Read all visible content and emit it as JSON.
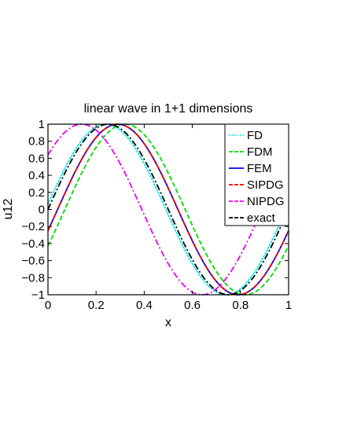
{
  "chart_data": {
    "type": "line",
    "title": "linear wave in 1+1 dimensions",
    "xlabel": "x",
    "ylabel": "u12",
    "xlim": [
      0,
      1
    ],
    "ylim": [
      -1,
      1
    ],
    "x_ticks": [
      "0",
      "0.2",
      "0.4",
      "0.6",
      "0.8",
      "1"
    ],
    "y_ticks": [
      "1",
      "0.8",
      "0.6",
      "0.4",
      "0.2",
      "0",
      "−0.2",
      "−0.4",
      "−0.6",
      "−0.8",
      "−1"
    ],
    "grid": false,
    "legend_position": "top-right",
    "series": [
      {
        "name": "FD",
        "color": "#00e5ee",
        "style": "dotted",
        "wave": {
          "amplitude": 1,
          "peak_x": 0.24
        },
        "points": [
          [
            0,
            0.23
          ],
          [
            0.24,
            1
          ],
          [
            0.74,
            -1
          ],
          [
            1,
            0.23
          ]
        ]
      },
      {
        "name": "FDM",
        "color": "#00dd00",
        "style": "dashed",
        "wave": {
          "amplitude": 1,
          "peak_x": 0.32
        },
        "points": [
          [
            0,
            -0.45
          ],
          [
            0.32,
            1
          ],
          [
            0.82,
            -1
          ],
          [
            1,
            -0.45
          ]
        ]
      },
      {
        "name": "FEM",
        "color": "#0000ee",
        "style": "solid",
        "wave": {
          "amplitude": 1,
          "peak_x": 0.29
        },
        "points": [
          [
            0,
            -0.25
          ],
          [
            0.29,
            1
          ],
          [
            0.79,
            -1
          ],
          [
            1,
            -0.25
          ]
        ]
      },
      {
        "name": "SIPDG",
        "color": "#ee0000",
        "style": "dashdot",
        "wave": {
          "amplitude": 1,
          "peak_x": 0.29
        },
        "points": [
          [
            0,
            -0.25
          ],
          [
            0.29,
            1
          ],
          [
            0.79,
            -1
          ],
          [
            1,
            -0.25
          ]
        ]
      },
      {
        "name": "NIPDG",
        "color": "#ee00ee",
        "style": "dashdot",
        "wave": {
          "amplitude": 1,
          "peak_x": 0.14
        },
        "points": [
          [
            0,
            0.65
          ],
          [
            0.14,
            1
          ],
          [
            0.64,
            -1
          ],
          [
            1,
            0.65
          ]
        ]
      },
      {
        "name": "exact",
        "color": "#000000",
        "style": "dashdot",
        "wave": {
          "amplitude": 1,
          "peak_x": 0.25
        },
        "points": [
          [
            0,
            0
          ],
          [
            0.25,
            1
          ],
          [
            0.75,
            -1
          ],
          [
            1,
            0
          ]
        ]
      }
    ]
  }
}
